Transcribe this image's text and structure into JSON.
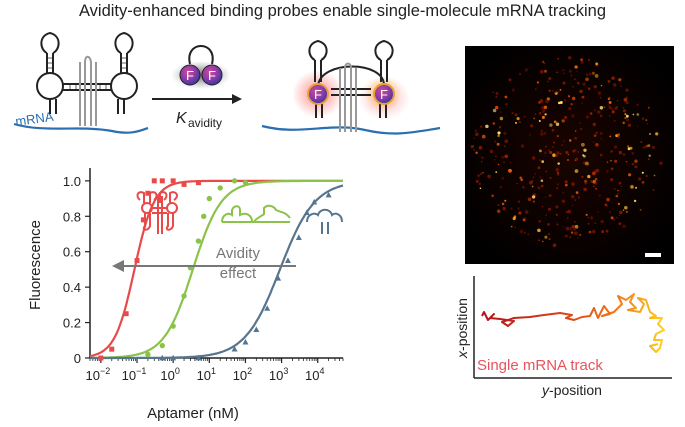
{
  "title": "Avidity-enhanced binding probes enable single-molecule mRNA tracking",
  "schematic": {
    "mrna_label": "mRNA",
    "probe_letter": "F",
    "arrow_label_main": "K",
    "arrow_label_sub": "avidity"
  },
  "chart_data": {
    "type": "scatter",
    "xlabel": "Aptamer (nM)",
    "ylabel": "Fluorescence",
    "xscale": "log",
    "xlim": [
      0.005,
      50000
    ],
    "ylim": [
      0,
      1.05
    ],
    "x_ticks": [
      "-2",
      "-1",
      "0",
      "1",
      "2",
      "3",
      "4"
    ],
    "x_tick_base": "10",
    "y_ticks": [
      "0",
      "0.2",
      "0.4",
      "0.6",
      "0.8",
      "1.0"
    ],
    "annotation": [
      "Avidity",
      "effect"
    ],
    "series": [
      {
        "color": "#e84a4a",
        "kd": 0.085,
        "hill": 1.6,
        "x": [
          0.01,
          0.02,
          0.05,
          0.1,
          0.15,
          0.2,
          0.3,
          0.5,
          1,
          2,
          5
        ],
        "y": [
          0.0,
          0.05,
          0.25,
          0.55,
          0.78,
          0.93,
          1.0,
          1.0,
          1.0,
          0.98,
          0.99
        ]
      },
      {
        "color": "#8bc34a",
        "kd": 3.5,
        "hill": 1.1,
        "x": [
          0.2,
          0.5,
          1,
          2,
          3,
          5,
          7,
          10,
          20,
          50,
          100
        ],
        "y": [
          0.02,
          0.07,
          0.18,
          0.35,
          0.51,
          0.66,
          0.8,
          0.9,
          0.96,
          1.0,
          0.99
        ]
      },
      {
        "color": "#56758f",
        "kd": 900,
        "hill": 0.9,
        "x": [
          0.5,
          1,
          5,
          50,
          100,
          200,
          400,
          800,
          1500,
          3000,
          5000,
          8000,
          20000
        ],
        "y": [
          0.0,
          0.0,
          0.0,
          0.05,
          0.09,
          0.16,
          0.28,
          0.45,
          0.55,
          0.68,
          0.82,
          0.88,
          0.92
        ]
      }
    ]
  },
  "microscopy": {
    "track_label": "Single mRNA track",
    "x_axis_italic": "x",
    "x_axis_rest": "-position",
    "y_axis_italic": "y",
    "y_axis_rest": "-position"
  },
  "colors": {
    "red": "#e84a4a",
    "green": "#8bc34a",
    "blue": "#56758f",
    "mrna": "#2a6fb0",
    "track_label": "#e8535b"
  }
}
